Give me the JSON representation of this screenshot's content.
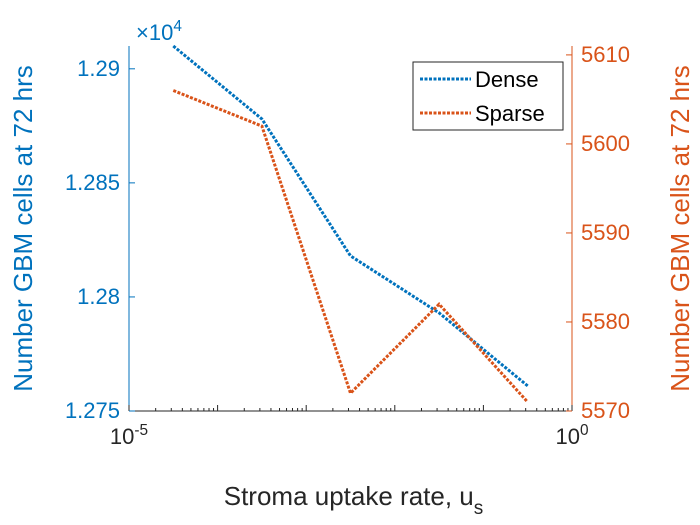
{
  "chart_data": {
    "type": "line",
    "title": "",
    "xlabel": "Stroma uptake rate, u",
    "xlabel_subscript": "s",
    "xscale": "log",
    "xlim_exponents": [
      -5,
      0
    ],
    "x_tick_labels": [
      {
        "base": "10",
        "exp": "-5"
      },
      {
        "base": "10",
        "exp": "0"
      }
    ],
    "x_exponents": [
      -4.5,
      -3.5,
      -2.5,
      -1.5,
      -0.5
    ],
    "left_axis": {
      "ylabel": "Number GBM cells at 72 hrs",
      "color": "#0072BD",
      "multiplier_base": "×10",
      "multiplier_exp": "4",
      "ylim": [
        1.275,
        1.291
      ],
      "ticks": [
        1.275,
        1.28,
        1.285,
        1.29
      ],
      "tick_labels": [
        "1.275",
        "1.28",
        "1.285",
        "1.29"
      ]
    },
    "right_axis": {
      "ylabel": "Number GBM cells at 72 hrs",
      "color": "#D95319",
      "ylim": [
        5570,
        5611
      ],
      "ticks": [
        5570,
        5580,
        5590,
        5600,
        5610
      ],
      "tick_labels": [
        "5570",
        "5580",
        "5590",
        "5600",
        "5610"
      ]
    },
    "series": [
      {
        "name": "Dense",
        "axis": "left",
        "color": "#0072BD",
        "values": [
          1.291,
          1.2878,
          1.2818,
          1.2793,
          1.2761
        ]
      },
      {
        "name": "Sparse",
        "axis": "right",
        "color": "#D95319",
        "values": [
          5606,
          5602,
          5572,
          5582,
          5571
        ]
      }
    ],
    "legend_position": "top-right",
    "grid": false
  }
}
